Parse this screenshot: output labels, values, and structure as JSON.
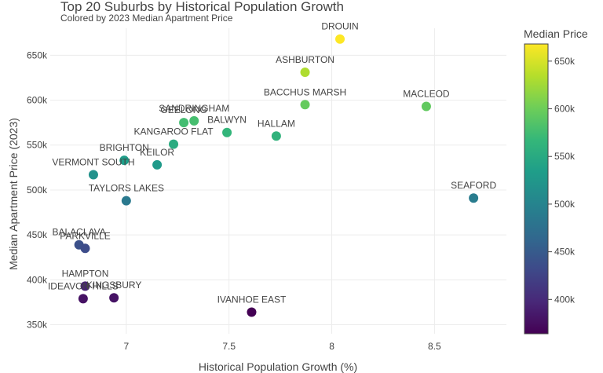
{
  "chart_data": {
    "type": "scatter",
    "title": "Top 20 Suburbs by Historical Population Growth",
    "subtitle": "Colored by 2023 Median Apartment Price",
    "xlabel": "Historical Population Growth (%)",
    "ylabel": "Median Apartment Price (2023)",
    "xlim": [
      6.63,
      8.85
    ],
    "ylim": [
      340000,
      680000
    ],
    "x_ticks": [
      7,
      7.5,
      8,
      8.5
    ],
    "x_tick_labels": [
      "7",
      "7.5",
      "8",
      "8.5"
    ],
    "y_ticks": [
      350000,
      400000,
      450000,
      500000,
      550000,
      600000,
      650000
    ],
    "y_tick_labels": [
      "350k",
      "400k",
      "450k",
      "500k",
      "550k",
      "600k",
      "650k"
    ],
    "grid": true,
    "legend": "none",
    "colorbar": {
      "title": "Median Price",
      "range": [
        364000,
        668000
      ],
      "ticks": [
        400000,
        450000,
        500000,
        550000,
        600000,
        650000
      ],
      "tick_labels": [
        "400k",
        "450k",
        "500k",
        "550k",
        "600k",
        "650k"
      ],
      "colorscale": [
        "#440154",
        "#482878",
        "#3e4989",
        "#31688e",
        "#26828e",
        "#1f9e89",
        "#35b779",
        "#6ece58",
        "#b5de2b",
        "#fde725"
      ]
    },
    "points": [
      {
        "label": "DROUIN",
        "x": 8.04,
        "y": 668000
      },
      {
        "label": "ASHBURTON",
        "x": 7.87,
        "y": 631000
      },
      {
        "label": "BACCHUS MARSH",
        "x": 7.87,
        "y": 595000
      },
      {
        "label": "MACLEOD",
        "x": 8.46,
        "y": 593000
      },
      {
        "label": "SANDRINGHAM",
        "x": 7.33,
        "y": 577000
      },
      {
        "label": "GEELONG",
        "x": 7.28,
        "y": 575000
      },
      {
        "label": "BALWYN",
        "x": 7.49,
        "y": 564000
      },
      {
        "label": "HALLAM",
        "x": 7.73,
        "y": 560000
      },
      {
        "label": "KANGAROO FLAT",
        "x": 7.23,
        "y": 551000
      },
      {
        "label": "BRIGHTON",
        "x": 6.99,
        "y": 533000
      },
      {
        "label": "KEILOR",
        "x": 7.15,
        "y": 528000
      },
      {
        "label": "VERMONT SOUTH",
        "x": 6.84,
        "y": 517000
      },
      {
        "label": "TAYLORS LAKES",
        "x": 7.0,
        "y": 488000
      },
      {
        "label": "SEAFORD",
        "x": 8.69,
        "y": 491000
      },
      {
        "label": "BALACLAVA",
        "x": 6.77,
        "y": 439000
      },
      {
        "label": "PARKVILLE",
        "x": 6.8,
        "y": 435000
      },
      {
        "label": "HAMPTON",
        "x": 6.8,
        "y": 393000
      },
      {
        "label": "KINGSBURY",
        "x": 6.94,
        "y": 380000
      },
      {
        "label": "IDEAVON HILLS",
        "x": 6.79,
        "y": 379000
      },
      {
        "label": "IVANHOE EAST",
        "x": 7.61,
        "y": 364000
      }
    ]
  }
}
